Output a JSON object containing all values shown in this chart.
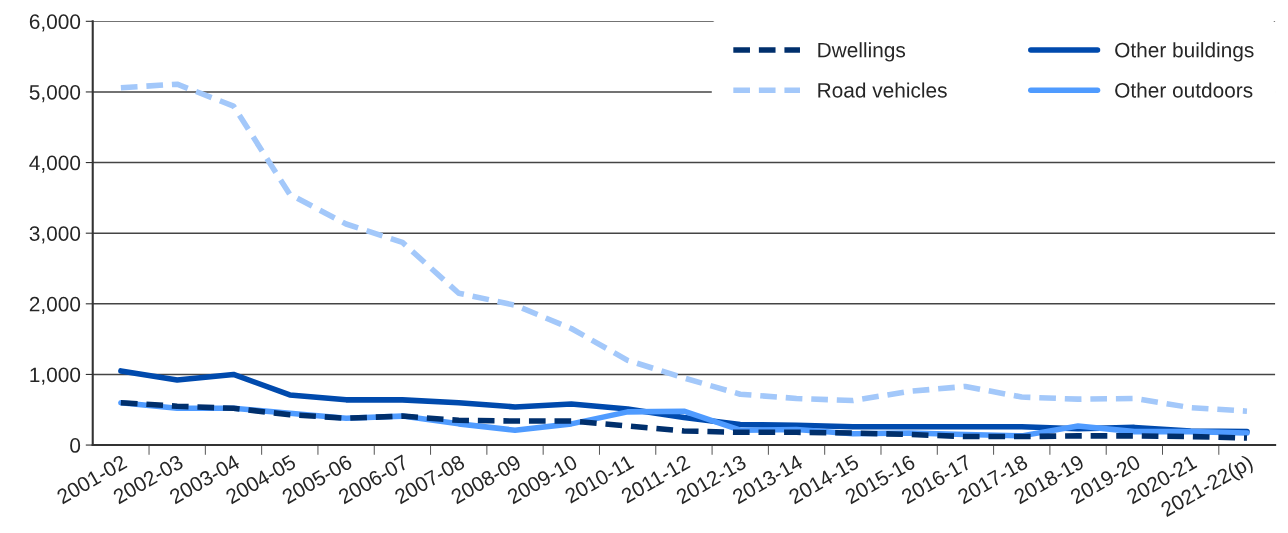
{
  "chart_data": {
    "type": "line",
    "categories": [
      "2001-02",
      "2002-03",
      "2003-04",
      "2004-05",
      "2005-06",
      "2006-07",
      "2007-08",
      "2008-09",
      "2009-10",
      "2010-11",
      "2011-12",
      "2012-13",
      "2013-14",
      "2014-15",
      "2015-16",
      "2016-17",
      "2017-18",
      "2018-19",
      "2019-20",
      "2020-21",
      "2021-22(p)"
    ],
    "series": [
      {
        "name": "Dwellings",
        "color": "#002f6c",
        "line_style": "dashed",
        "values": [
          600,
          550,
          520,
          430,
          380,
          410,
          350,
          340,
          340,
          270,
          200,
          180,
          180,
          170,
          150,
          120,
          120,
          130,
          130,
          120,
          100
        ]
      },
      {
        "name": "Other buildings",
        "color": "#004aad",
        "line_style": "solid",
        "values": [
          1050,
          920,
          1000,
          710,
          640,
          640,
          600,
          540,
          580,
          510,
          390,
          290,
          280,
          260,
          260,
          260,
          260,
          230,
          250,
          200,
          190
        ]
      },
      {
        "name": "Road vehicles",
        "color": "#a3c8fa",
        "line_style": "dashed",
        "values": [
          5060,
          5110,
          4800,
          3550,
          3130,
          2870,
          2150,
          1980,
          1650,
          1200,
          950,
          720,
          660,
          630,
          760,
          830,
          680,
          650,
          660,
          530,
          480
        ]
      },
      {
        "name": "Other outdoors",
        "color": "#4f9bff",
        "line_style": "solid",
        "values": [
          600,
          520,
          520,
          450,
          380,
          410,
          300,
          210,
          300,
          470,
          480,
          210,
          220,
          160,
          170,
          150,
          130,
          270,
          190,
          190,
          170
        ]
      }
    ],
    "ylim": [
      0,
      6000
    ],
    "yticks": [
      {
        "value": 0,
        "label": "0"
      },
      {
        "value": 1000,
        "label": "1,000"
      },
      {
        "value": 2000,
        "label": "2,000"
      },
      {
        "value": 3000,
        "label": "3,000"
      },
      {
        "value": 4000,
        "label": "4,000"
      },
      {
        "value": 5000,
        "label": "5,000"
      },
      {
        "value": 6000,
        "label": "6,000"
      }
    ],
    "grid": "y",
    "legend": "top right",
    "marker": "none"
  }
}
